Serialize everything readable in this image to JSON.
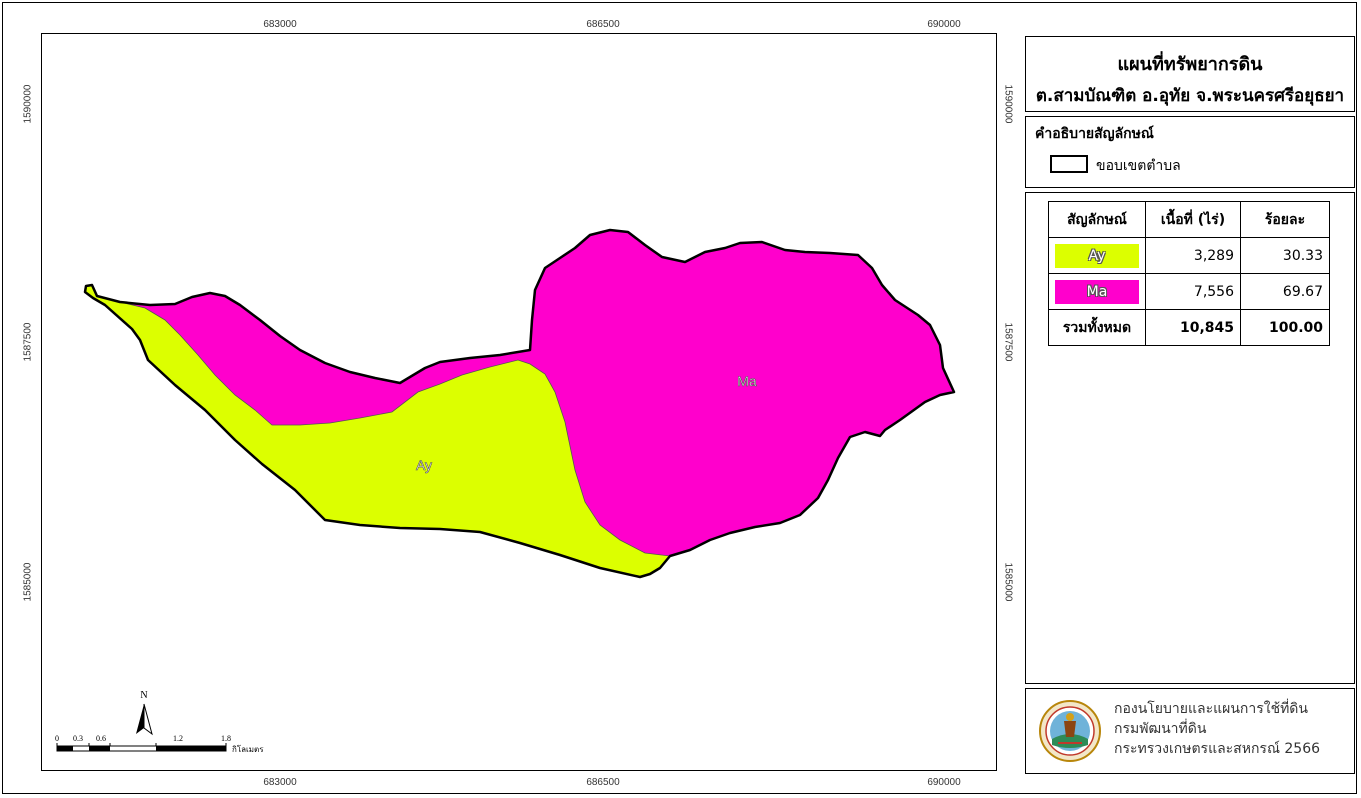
{
  "map": {
    "x_ticks": [
      "683000",
      "686500",
      "690000"
    ],
    "y_ticks": [
      "1590000",
      "1587500",
      "1585000"
    ],
    "units": [
      "Ay",
      "Ma"
    ],
    "colors": {
      "Ay": "#dcff00",
      "Ma": "#ff00cc",
      "boundary": "#000000"
    }
  },
  "north_arrow": {
    "label": "N"
  },
  "scale_bar": {
    "ticks": [
      "0",
      "0.3",
      "0.6",
      "1.2",
      "1.8"
    ],
    "unit": "กิโลเมตร"
  },
  "title": {
    "line1": "แผนที่ทรัพยากรดิน",
    "line2": "ต.สามบัณฑิต อ.อุทัย จ.พระนครศรีอยุธยา"
  },
  "legend": {
    "title": "คำอธิบายสัญลักษณ์",
    "boundary_label": "ขอบเขตตำบล"
  },
  "soil_table": {
    "headers": [
      "สัญลักษณ์",
      "เนื้อที่ (ไร่)",
      "ร้อยละ"
    ],
    "rows": [
      {
        "code": "Ay",
        "area": "3,289",
        "percent": "30.33",
        "color": "#dcff00"
      },
      {
        "code": "Ma",
        "area": "7,556",
        "percent": "69.67",
        "color": "#ff00cc"
      }
    ],
    "total": {
      "label": "รวมทั้งหมด",
      "area": "10,845",
      "percent": "100.00"
    }
  },
  "credit": {
    "line1": "กองนโยบายและแผนการใช้ที่ดิน",
    "line2": "กรมพัฒนาที่ดิน",
    "line3": "กระทรวงเกษตรและสหกรณ์ 2566"
  }
}
